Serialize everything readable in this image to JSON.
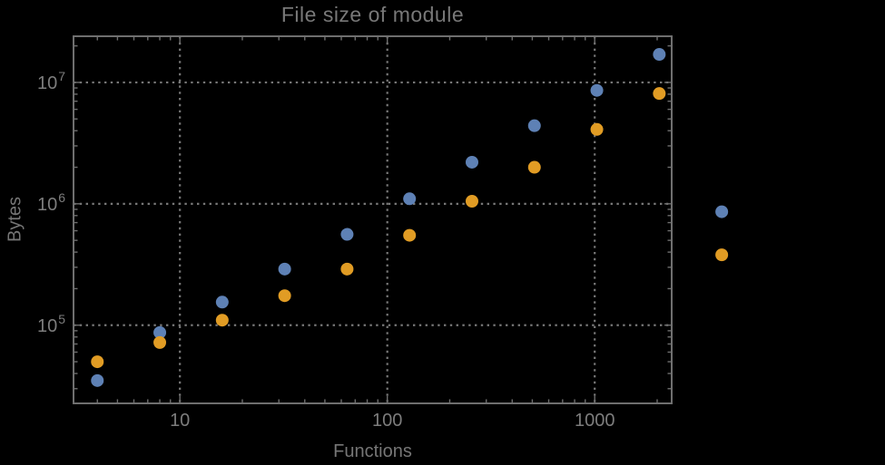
{
  "chart_data": {
    "type": "scatter",
    "title": "File size of module",
    "xlabel": "Functions",
    "ylabel": "Bytes",
    "x_scale": "log",
    "y_scale": "log",
    "x": [
      4,
      8,
      16,
      32,
      64,
      128,
      256,
      512,
      1024,
      2048,
      4096
    ],
    "series": [
      {
        "name": "series-blue",
        "color": "#5E81B5",
        "values": [
          35000,
          87000,
          155000,
          290000,
          560000,
          1100000,
          2200000,
          4400000,
          8600000,
          17000000,
          860000
        ]
      },
      {
        "name": "series-orange",
        "color": "#E19C24",
        "values": [
          50000,
          72000,
          110000,
          175000,
          290000,
          550000,
          1050000,
          2000000,
          4100000,
          8100000,
          380000
        ]
      }
    ],
    "x_ticks": {
      "values": [
        10,
        100,
        1000
      ],
      "labels": [
        "10",
        "100",
        "1000"
      ]
    },
    "y_ticks": {
      "values": [
        100000,
        1000000,
        10000000
      ],
      "labels": [
        {
          "base": "10",
          "exp": "5"
        },
        {
          "base": "10",
          "exp": "6"
        },
        {
          "base": "10",
          "exp": "7"
        }
      ]
    },
    "xlim": [
      3.07,
      2350
    ],
    "ylim": [
      22700,
      24000000
    ],
    "grid": "dotted",
    "legend_position": "none",
    "clip_points": false
  },
  "style": {
    "background": "#000000",
    "frame_color": "#6f6f6f",
    "grid_color": "#777777",
    "tick_color": "#6f6f6f",
    "text_color": "#7d7d7d",
    "point_radius": 7
  }
}
